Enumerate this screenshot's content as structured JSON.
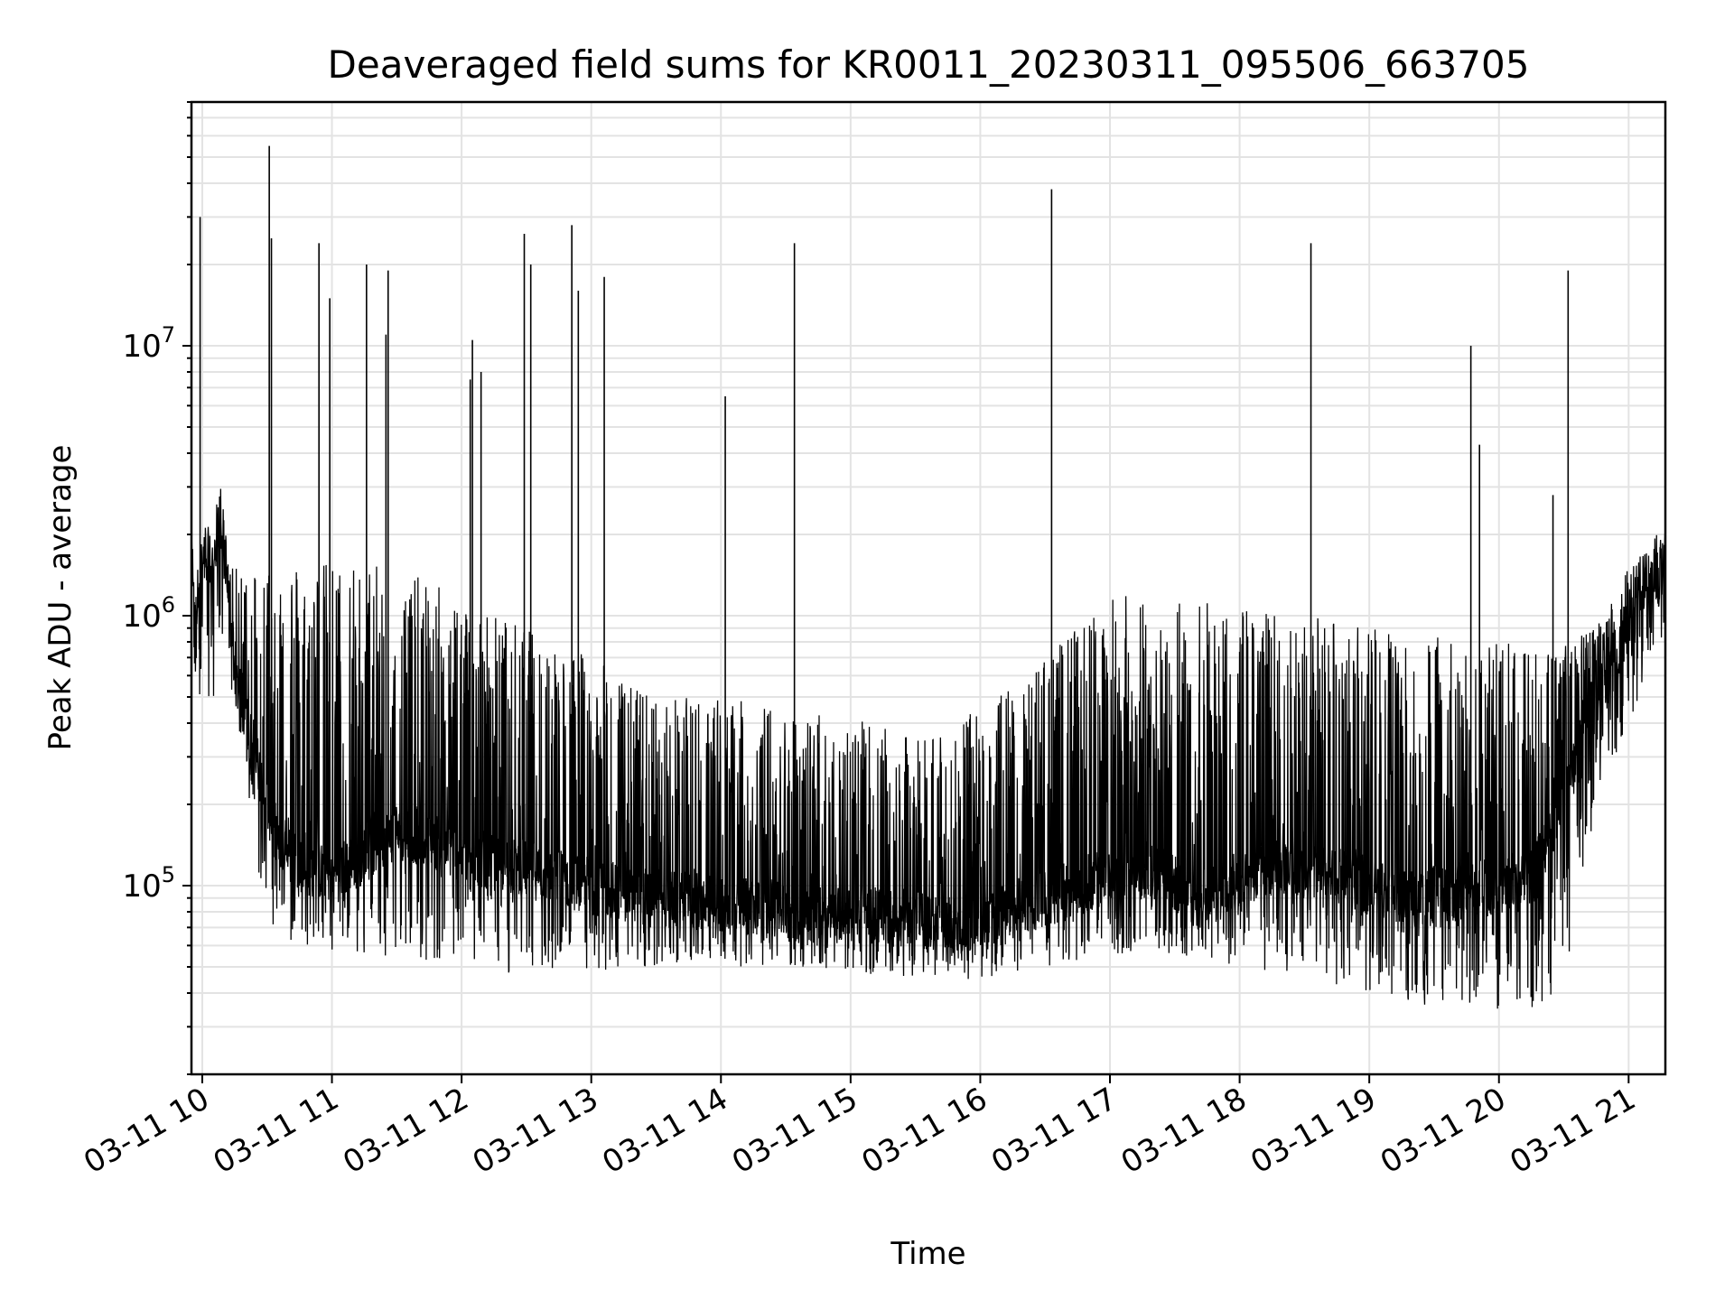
{
  "chart_data": {
    "type": "line",
    "title": "Deaveraged field sums for KR0011_20230311_095506_663705",
    "xlabel": "Time",
    "ylabel": "Peak ADU - average",
    "y_scale": "log",
    "ylim": [
      20000,
      80000000
    ],
    "xlim": [
      "2023-03-11T09:55:00",
      "2023-03-11T21:17:00"
    ],
    "x_ticks": [
      "2023-03-11T10:00",
      "2023-03-11T11:00",
      "2023-03-11T12:00",
      "2023-03-11T13:00",
      "2023-03-11T14:00",
      "2023-03-11T15:00",
      "2023-03-11T16:00",
      "2023-03-11T17:00",
      "2023-03-11T18:00",
      "2023-03-11T19:00",
      "2023-03-11T20:00",
      "2023-03-11T21:00"
    ],
    "x_tick_labels": [
      "03-11 10",
      "03-11 11",
      "03-11 12",
      "03-11 13",
      "03-11 14",
      "03-11 15",
      "03-11 16",
      "03-11 17",
      "03-11 18",
      "03-11 19",
      "03-11 20",
      "03-11 21"
    ],
    "y_ticks": [
      100000,
      1000000,
      10000000
    ],
    "y_tick_labels": [
      {
        "base": "10",
        "exp": "5"
      },
      {
        "base": "10",
        "exp": "6"
      },
      {
        "base": "10",
        "exp": "7"
      }
    ],
    "grid": true,
    "color": "#000000",
    "series": [
      {
        "points": [
          [
            "2023-03-11T09:56",
            600000
          ],
          [
            "2023-03-11T09:58",
            1300000
          ],
          [
            "2023-03-11T10:01",
            1800000
          ],
          [
            "2023-03-11T10:05",
            1500000
          ],
          [
            "2023-03-11T10:08",
            2600000
          ],
          [
            "2023-03-11T10:12",
            1300000
          ],
          [
            "2023-03-11T10:15",
            600000
          ],
          [
            "2023-03-11T10:20",
            420000
          ],
          [
            "2023-03-11T10:25",
            300000
          ],
          [
            "2023-03-11T10:30",
            200000
          ],
          [
            "2023-03-11T10:35",
            150000
          ],
          [
            "2023-03-11T10:45",
            120000
          ],
          [
            "2023-03-11T11:00",
            110000
          ],
          [
            "2023-03-11T11:15",
            130000
          ],
          [
            "2023-03-11T11:30",
            160000
          ],
          [
            "2023-03-11T11:45",
            150000
          ],
          [
            "2023-03-11T12:00",
            130000
          ],
          [
            "2023-03-11T12:20",
            120000
          ],
          [
            "2023-03-11T12:40",
            110000
          ],
          [
            "2023-03-11T13:00",
            100000
          ],
          [
            "2023-03-11T13:30",
            90000
          ],
          [
            "2023-03-11T14:00",
            85000
          ],
          [
            "2023-03-11T14:30",
            80000
          ],
          [
            "2023-03-11T15:00",
            78000
          ],
          [
            "2023-03-11T15:30",
            75000
          ],
          [
            "2023-03-11T15:50",
            70000
          ],
          [
            "2023-03-11T16:10",
            80000
          ],
          [
            "2023-03-11T16:40",
            95000
          ],
          [
            "2023-03-11T17:00",
            110000
          ],
          [
            "2023-03-11T17:20",
            115000
          ],
          [
            "2023-03-11T17:40",
            90000
          ],
          [
            "2023-03-11T18:00",
            100000
          ],
          [
            "2023-03-11T18:20",
            120000
          ],
          [
            "2023-03-11T18:40",
            110000
          ],
          [
            "2023-03-11T19:00",
            100000
          ],
          [
            "2023-03-11T19:20",
            90000
          ],
          [
            "2023-03-11T19:40",
            95000
          ],
          [
            "2023-03-11T20:00",
            100000
          ],
          [
            "2023-03-11T20:15",
            110000
          ],
          [
            "2023-03-11T20:30",
            200000
          ],
          [
            "2023-03-11T20:40",
            450000
          ],
          [
            "2023-03-11T20:50",
            600000
          ],
          [
            "2023-03-11T21:00",
            900000
          ],
          [
            "2023-03-11T21:08",
            1200000
          ],
          [
            "2023-03-11T21:17",
            1500000
          ]
        ]
      }
    ],
    "noise_envelope": [
      [
        "2023-03-11T09:55",
        500000,
        1500000
      ],
      [
        "2023-03-11T10:15",
        500000,
        1500000
      ],
      [
        "2023-03-11T10:30",
        65000,
        1700000
      ],
      [
        "2023-03-11T11:00",
        55000,
        1600000
      ],
      [
        "2023-03-11T11:30",
        55000,
        1500000
      ],
      [
        "2023-03-11T12:00",
        50000,
        1200000
      ],
      [
        "2023-03-11T12:30",
        45000,
        900000
      ],
      [
        "2023-03-11T13:00",
        45000,
        700000
      ],
      [
        "2023-03-11T13:30",
        50000,
        500000
      ],
      [
        "2023-03-11T14:00",
        50000,
        500000
      ],
      [
        "2023-03-11T14:30",
        50000,
        450000
      ],
      [
        "2023-03-11T15:00",
        48000,
        420000
      ],
      [
        "2023-03-11T15:30",
        45000,
        350000
      ],
      [
        "2023-03-11T16:00",
        45000,
        450000
      ],
      [
        "2023-03-11T16:30",
        50000,
        700000
      ],
      [
        "2023-03-11T17:00",
        55000,
        1200000
      ],
      [
        "2023-03-11T17:30",
        55000,
        1200000
      ],
      [
        "2023-03-11T18:00",
        50000,
        1100000
      ],
      [
        "2023-03-11T18:30",
        45000,
        1000000
      ],
      [
        "2023-03-11T19:00",
        40000,
        900000
      ],
      [
        "2023-03-11T19:30",
        35000,
        850000
      ],
      [
        "2023-03-11T20:00",
        35000,
        800000
      ],
      [
        "2023-03-11T20:30",
        35000,
        800000
      ],
      [
        "2023-03-11T20:45",
        200000,
        900000
      ],
      [
        "2023-03-11T21:00",
        400000,
        1500000
      ],
      [
        "2023-03-11T21:17",
        900000,
        2200000
      ]
    ],
    "spikes": [
      [
        "2023-03-11T09:59",
        30000000
      ],
      [
        "2023-03-11T10:31",
        55000000
      ],
      [
        "2023-03-11T10:32",
        25000000
      ],
      [
        "2023-03-11T10:54",
        24000000
      ],
      [
        "2023-03-11T10:59",
        15000000
      ],
      [
        "2023-03-11T11:16",
        20000000
      ],
      [
        "2023-03-11T11:26",
        19000000
      ],
      [
        "2023-03-11T11:25",
        11000000
      ],
      [
        "2023-03-11T12:04",
        7500000
      ],
      [
        "2023-03-11T12:05",
        10500000
      ],
      [
        "2023-03-11T12:09",
        8000000
      ],
      [
        "2023-03-11T12:29",
        26000000
      ],
      [
        "2023-03-11T12:32",
        20000000
      ],
      [
        "2023-03-11T12:51",
        28000000
      ],
      [
        "2023-03-11T12:54",
        16000000
      ],
      [
        "2023-03-11T13:06",
        18000000
      ],
      [
        "2023-03-11T14:02",
        6500000
      ],
      [
        "2023-03-11T14:34",
        24000000
      ],
      [
        "2023-03-11T16:33",
        38000000
      ],
      [
        "2023-03-11T18:33",
        24000000
      ],
      [
        "2023-03-11T19:47",
        10000000
      ],
      [
        "2023-03-11T19:51",
        4300000
      ],
      [
        "2023-03-11T20:25",
        2800000
      ],
      [
        "2023-03-11T20:32",
        19000000
      ]
    ]
  }
}
